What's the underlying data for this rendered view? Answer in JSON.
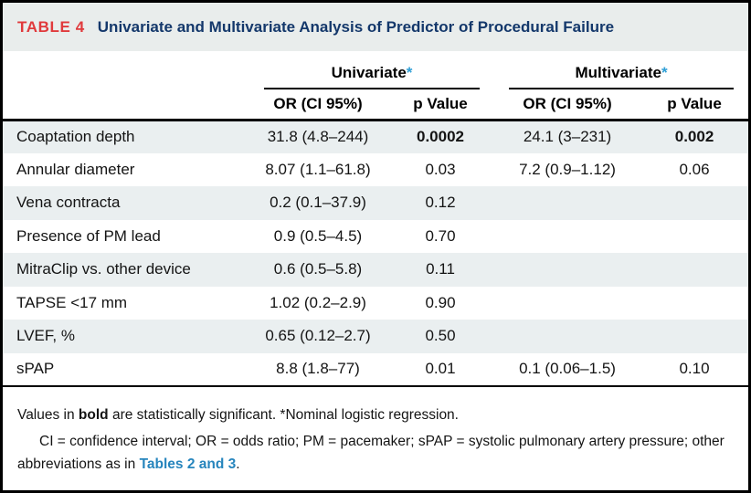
{
  "caption": {
    "label": "TABLE 4",
    "title": "Univariate and Multivariate Analysis of Predictor of Procedural Failure"
  },
  "header": {
    "groups": [
      {
        "label": "Univariate",
        "marker": "*"
      },
      {
        "label": "Multivariate",
        "marker": "*"
      }
    ],
    "subheaders": [
      "OR (CI 95%)",
      "p Value",
      "OR (CI 95%)",
      "p Value"
    ]
  },
  "body": {
    "rows": [
      {
        "label": "Coaptation depth",
        "cells": [
          {
            "text": "31.8 (4.8–244)"
          },
          {
            "text": "0.0002",
            "bold": true
          },
          {
            "text": "24.1 (3–231)"
          },
          {
            "text": "0.002",
            "bold": true
          }
        ]
      },
      {
        "label": "Annular diameter",
        "cells": [
          {
            "text": "8.07 (1.1–61.8)"
          },
          {
            "text": "0.03"
          },
          {
            "text": "7.2 (0.9–1.12)"
          },
          {
            "text": "0.06"
          }
        ]
      },
      {
        "label": "Vena contracta",
        "cells": [
          {
            "text": "0.2 (0.1–37.9)"
          },
          {
            "text": "0.12"
          },
          {
            "text": ""
          },
          {
            "text": ""
          }
        ]
      },
      {
        "label": "Presence of PM lead",
        "cells": [
          {
            "text": "0.9 (0.5–4.5)"
          },
          {
            "text": "0.70"
          },
          {
            "text": ""
          },
          {
            "text": ""
          }
        ]
      },
      {
        "label": "MitraClip vs. other device",
        "cells": [
          {
            "text": "0.6 (0.5–5.8)"
          },
          {
            "text": "0.11"
          },
          {
            "text": ""
          },
          {
            "text": ""
          }
        ]
      },
      {
        "label": "TAPSE <17 mm",
        "cells": [
          {
            "text": "1.02 (0.2–2.9)"
          },
          {
            "text": "0.90"
          },
          {
            "text": ""
          },
          {
            "text": ""
          }
        ]
      },
      {
        "label": "LVEF, %",
        "cells": [
          {
            "text": "0.65 (0.12–2.7)"
          },
          {
            "text": "0.50"
          },
          {
            "text": ""
          },
          {
            "text": ""
          }
        ]
      },
      {
        "label": "sPAP",
        "cells": [
          {
            "text": "8.8 (1.8–77)"
          },
          {
            "text": "0.01"
          },
          {
            "text": "0.1 (0.06–1.5)"
          },
          {
            "text": "0.10"
          }
        ]
      }
    ]
  },
  "footnotes": {
    "line1_parts": [
      {
        "text": "Values in "
      },
      {
        "text": "bold",
        "bold": true
      },
      {
        "text": " are statistically significant. *Nominal logistic regression."
      }
    ],
    "line2_parts": [
      {
        "text": "CI = confidence interval; OR = odds ratio; PM = pacemaker; sPAP = systolic pulmonary artery pressure; other abbreviations as in "
      },
      {
        "text": "Tables 2 and 3",
        "link": true
      },
      {
        "text": "."
      }
    ]
  },
  "colors": {
    "table_number_red": "#e03a3c",
    "title_navy": "#14386b",
    "asterisk_blue": "#2f9fd6",
    "link_blue": "#2685bd",
    "shaded_row": "#eaeff0",
    "caption_bg": "#e9edec"
  }
}
